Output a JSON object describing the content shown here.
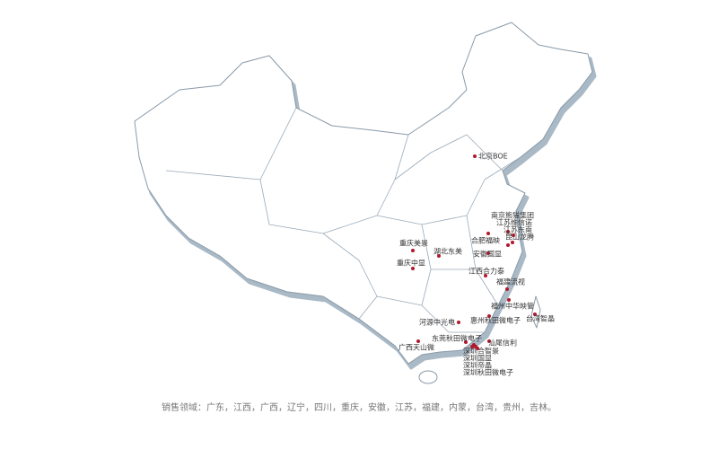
{
  "markers": [
    {
      "label": "北京BOE"
    },
    {
      "label": "南京熊猫集团"
    },
    {
      "label": "江苏维信诺"
    },
    {
      "label": "江苏东南"
    },
    {
      "label": "昆山龙腾"
    },
    {
      "label": "合肥福映"
    },
    {
      "label": "安徽国显"
    },
    {
      "label": "重庆美景"
    },
    {
      "label": "湖北东美"
    },
    {
      "label": "重庆中显"
    },
    {
      "label": "江西合力泰"
    },
    {
      "label": "福建流视"
    },
    {
      "label": "福州中华映管"
    },
    {
      "label": "台湾智晶"
    },
    {
      "label": "河源中光电"
    },
    {
      "label": "惠州秋田微电子"
    },
    {
      "label": "东莞秋田微电子"
    },
    {
      "label": "汕尾信利"
    },
    {
      "label": "广西天山微"
    },
    {
      "label": "深圳合智景"
    },
    {
      "label": "深圳国显"
    },
    {
      "label": "深圳帝晶"
    },
    {
      "label": "深圳秋田微电子"
    }
  ],
  "caption": "销售领域：广东，江西，广西，辽宁，四川，重庆，安徽，江苏，福建，内蒙，台湾，贵州，吉林。"
}
